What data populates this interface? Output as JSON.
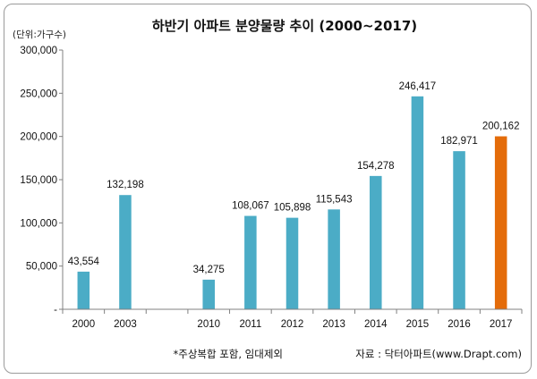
{
  "chart_data": {
    "type": "bar",
    "title": "하반기 아파트 분양물량 추이 (2000~2017)",
    "unit_label": "(단위:가구수)",
    "categories": [
      "2000",
      "2003",
      "",
      "2010",
      "2011",
      "2012",
      "2013",
      "2014",
      "2015",
      "2016",
      "2017"
    ],
    "values": [
      43554,
      132198,
      null,
      34275,
      108067,
      105898,
      115543,
      154278,
      246417,
      182971,
      200162
    ],
    "value_labels": [
      "43,554",
      "132,198",
      "",
      "34,275",
      "108,067",
      "105,898",
      "115,543",
      "154,278",
      "246,417",
      "182,971",
      "200,162"
    ],
    "y_ticks": [
      "300,000",
      "250,000",
      "200,000",
      "150,000",
      "100,000",
      "50,000",
      "-"
    ],
    "y_tick_values": [
      300000,
      250000,
      200000,
      150000,
      100000,
      50000,
      0
    ],
    "ylim": [
      0,
      300000
    ],
    "colors": {
      "default": "#4bacc6",
      "highlight": "#e46c0a",
      "axis": "#808080"
    },
    "highlight_category": "2017",
    "grid": false,
    "legend": "none"
  },
  "footnote": "*주상복합 포함, 임대제외",
  "source": "자료 : 닥터아파트(www.Drapt.com)"
}
